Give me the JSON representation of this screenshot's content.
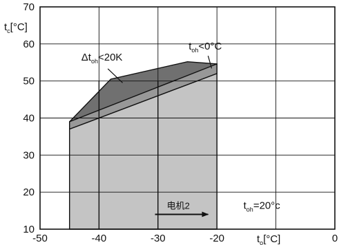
{
  "chart_data": {
    "type": "area",
    "xlabel": {
      "base": "t",
      "sub": "o",
      "unit": "[°C]"
    },
    "ylabel": {
      "base": "t",
      "sub": "c",
      "unit": "[°C]"
    },
    "xlim": [
      -50,
      0
    ],
    "ylim": [
      10,
      70
    ],
    "x_ticks": [
      "-50",
      "-40",
      "-30",
      "-20",
      "0"
    ],
    "y_ticks": [
      "10",
      "20",
      "30",
      "40",
      "50",
      "60",
      "70"
    ],
    "grid": true,
    "regions": [
      {
        "name": "dt_oh_lt_20K",
        "fill": "#707070",
        "points": [
          [
            -45,
            39
          ],
          [
            -38,
            50.5
          ],
          [
            -25,
            55.2
          ],
          [
            -20,
            54.6
          ],
          [
            -20,
            52
          ],
          [
            -45,
            37
          ]
        ]
      },
      {
        "name": "t_oh_lt_0C",
        "fill": "#989898",
        "points": [
          [
            -45,
            39
          ],
          [
            -20,
            54.6
          ],
          [
            -20,
            52
          ],
          [
            -45,
            37
          ]
        ]
      },
      {
        "name": "operating_envelope",
        "fill": "#c4c4c4",
        "points": [
          [
            -45,
            37
          ],
          [
            -20,
            52
          ],
          [
            -20,
            10
          ],
          [
            -45,
            10
          ]
        ]
      }
    ],
    "lines": [
      {
        "points": [
          [
            -40,
            10
          ],
          [
            -40,
            50
          ]
        ]
      },
      {
        "points": [
          [
            -30,
            10
          ],
          [
            -30,
            50
          ]
        ]
      }
    ],
    "annotations": [
      {
        "id": "dt-oh",
        "base": "Δt",
        "sub": "oh",
        "rest": "<20K",
        "at": [
          -43,
          55.5
        ],
        "pointer_from": [
          -38.5,
          53.3
        ],
        "pointer_to": [
          -36,
          49.5
        ]
      },
      {
        "id": "t-oh-neg",
        "base": "t",
        "sub": "oh",
        "rest": "<0°C",
        "at": [
          -24.8,
          58.5
        ],
        "pointer_from": [
          -21.5,
          56.8
        ],
        "pointer_to": [
          -20.9,
          53.4
        ]
      },
      {
        "id": "motor",
        "text": "电机2",
        "at": [
          -28.5,
          15.5
        ],
        "arrow_from": [
          -30.5,
          14
        ],
        "arrow_to": [
          -21.5,
          14
        ]
      },
      {
        "id": "t-oh-20",
        "base": "t",
        "sub": "oh",
        "rest": "=20°c",
        "at": [
          -15.5,
          15.5
        ]
      }
    ]
  }
}
